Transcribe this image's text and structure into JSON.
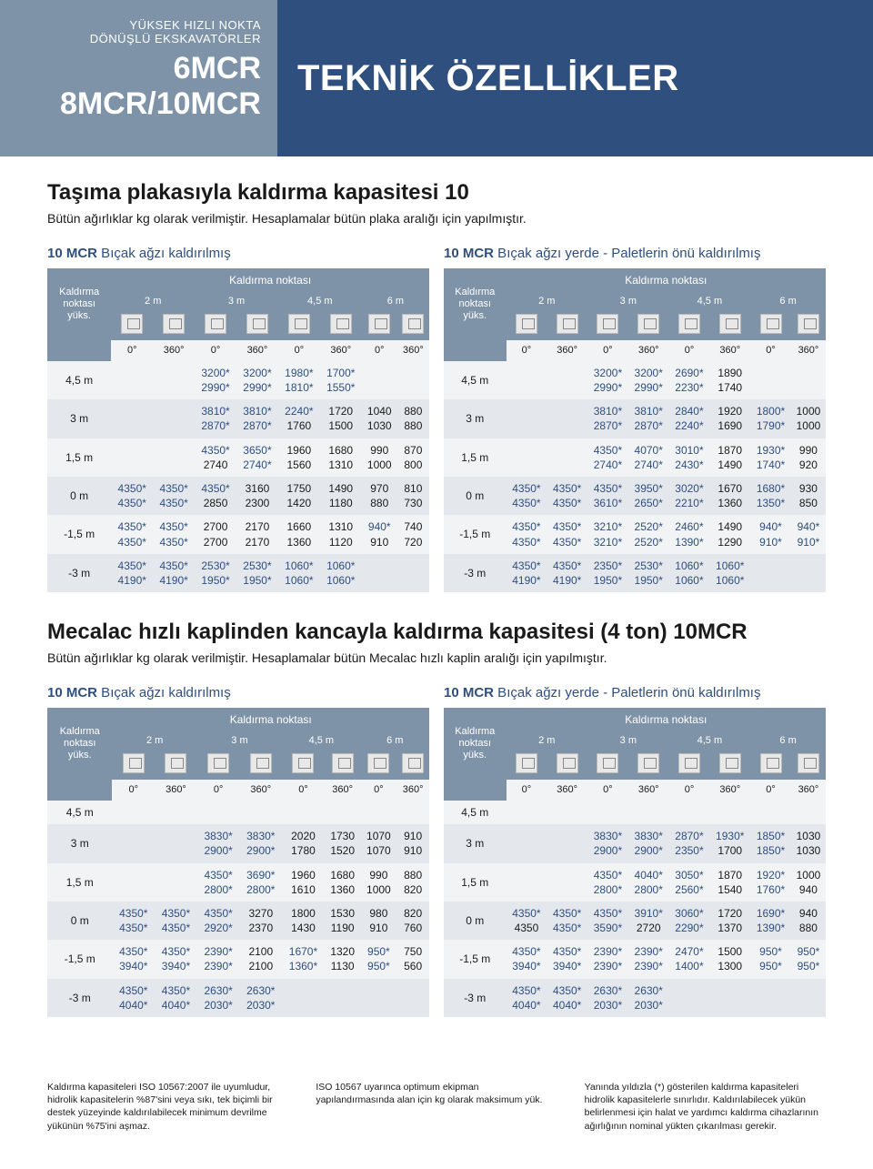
{
  "hdr": {
    "s1": "YÜKSEK HIZLI NOKTA",
    "s2": "DÖNÜŞLÜ EKSKAVATÖRLER",
    "m1": "6MCR",
    "m2": "8MCR/10MCR",
    "r": "TEKNİK ÖZELLİKLER"
  },
  "sec1": {
    "h": "Taşıma plakasıyla kaldırma kapasitesi 10",
    "sub": "Bütün ağırlıklar kg olarak verilmiştir. Hesaplamalar bütün plaka aralığı için yapılmıştır."
  },
  "sec2": {
    "h": "Mecalac hızlı kaplinden kancayla kaldırma kapasitesi (4 ton) 10MCR",
    "sub": "Bütün ağırlıklar kg olarak verilmiştir. Hesaplamalar bütün Mecalac hızlı kaplin aralığı için yapılmıştır."
  },
  "th": {
    "kn": "Kaldırma noktası",
    "lab": "Kaldırma noktası yüks.",
    "cols": [
      "2 m",
      "3 m",
      "4,5 m",
      "6 m"
    ],
    "degs": [
      "0°",
      "360°",
      "0°",
      "360°",
      "0°",
      "360°",
      "0°",
      "360°"
    ]
  },
  "t1": {
    "title": "10 MCR Bıçak ağzı kaldırılmış",
    "rows": [
      {
        "h": "4,5 m",
        "c": [
          "",
          "",
          "3200*|2990*",
          "3200*|2990*",
          "1980*|1810*",
          "1700*|1550*",
          "",
          ""
        ]
      },
      {
        "h": "3 m",
        "c": [
          "",
          "",
          "3810*|2870*",
          "3810*|2870*",
          "2240*|1760",
          "1720|1500",
          "1040|1030",
          "880|880"
        ]
      },
      {
        "h": "1,5 m",
        "c": [
          "",
          "",
          "4350*|2740",
          "3650*|2740*",
          "1960|1560",
          "1680|1310",
          "990|1000",
          "870|800"
        ]
      },
      {
        "h": "0 m",
        "c": [
          "4350*|4350*",
          "4350*|4350*",
          "4350*|2850",
          "3160|2300",
          "1750|1420",
          "1490|1180",
          "970|880",
          "810|730"
        ]
      },
      {
        "h": "-1,5 m",
        "c": [
          "4350*|4350*",
          "4350*|4350*",
          "2700|2700",
          "2170|2170",
          "1660|1360",
          "1310|1120",
          "940*|910",
          "740|720"
        ]
      },
      {
        "h": "-3 m",
        "c": [
          "4350*|4190*",
          "4350*|4190*",
          "2530*|1950*",
          "2530*|1950*",
          "1060*|1060*",
          "1060*|1060*",
          "",
          ""
        ]
      }
    ]
  },
  "t2": {
    "title": "10 MCR Bıçak ağzı yerde - Paletlerin önü kaldırılmış",
    "rows": [
      {
        "h": "4,5 m",
        "c": [
          "",
          "",
          "3200*|2990*",
          "3200*|2990*",
          "2690*|2230*",
          "1890|1740",
          "",
          ""
        ]
      },
      {
        "h": "3 m",
        "c": [
          "",
          "",
          "3810*|2870*",
          "3810*|2870*",
          "2840*|2240*",
          "1920|1690",
          "1800*|1790*",
          "1000|1000"
        ]
      },
      {
        "h": "1,5 m",
        "c": [
          "",
          "",
          "4350*|2740*",
          "4070*|2740*",
          "3010*|2430*",
          "1870|1490",
          "1930*|1740*",
          "990|920"
        ]
      },
      {
        "h": "0 m",
        "c": [
          "4350*|4350*",
          "4350*|4350*",
          "4350*|3610*",
          "3950*|2650*",
          "3020*|2210*",
          "1670|1360",
          "1680*|1350*",
          "930|850"
        ]
      },
      {
        "h": "-1,5 m",
        "c": [
          "4350*|4350*",
          "4350*|4350*",
          "3210*|3210*",
          "2520*|2520*",
          "2460*|1390*",
          "1490|1290",
          "940*|910*",
          "940*|910*"
        ]
      },
      {
        "h": "-3 m",
        "c": [
          "4350*|4190*",
          "4350*|4190*",
          "2350*|1950*",
          "2530*|1950*",
          "1060*|1060*",
          "1060*|1060*",
          "",
          ""
        ]
      }
    ]
  },
  "t3": {
    "title": "10 MCR Bıçak ağzı kaldırılmış",
    "rows": [
      {
        "h": "4,5 m",
        "c": [
          "",
          "",
          "",
          "",
          "",
          "",
          "",
          ""
        ]
      },
      {
        "h": "3 m",
        "c": [
          "",
          "",
          "3830*|2900*",
          "3830*|2900*",
          "2020|1780",
          "1730|1520",
          "1070|1070",
          "910|910"
        ]
      },
      {
        "h": "1,5 m",
        "c": [
          "",
          "",
          "4350*|2800*",
          "3690*|2800*",
          "1960|1610",
          "1680|1360",
          "990|1000",
          "880|820"
        ]
      },
      {
        "h": "0 m",
        "c": [
          "4350*|4350*",
          "4350*|4350*",
          "4350*|2920*",
          "3270|2370",
          "1800|1430",
          "1530|1190",
          "980|910",
          "820|760"
        ]
      },
      {
        "h": "-1,5 m",
        "c": [
          "4350*|3940*",
          "4350*|3940*",
          "2390*|2390*",
          "2100|2100",
          "1670*|1360*",
          "1320|1130",
          "950*|950*",
          "750|560"
        ]
      },
      {
        "h": "-3 m",
        "c": [
          "4350*|4040*",
          "4350*|4040*",
          "2630*|2030*",
          "2630*|2030*",
          "",
          "",
          "",
          ""
        ]
      }
    ]
  },
  "t4": {
    "title": "10 MCR Bıçak ağzı yerde - Paletlerin önü kaldırılmış",
    "rows": [
      {
        "h": "4,5 m",
        "c": [
          "",
          "",
          "",
          "",
          "",
          "",
          "",
          ""
        ]
      },
      {
        "h": "3 m",
        "c": [
          "",
          "",
          "3830*|2900*",
          "3830*|2900*",
          "2870*|2350*",
          "1930*|1700",
          "1850*|1850*",
          "1030|1030"
        ]
      },
      {
        "h": "1,5 m",
        "c": [
          "",
          "",
          "4350*|2800*",
          "4040*|2800*",
          "3050*|2560*",
          "1870|1540",
          "1920*|1760*",
          "1000|940"
        ]
      },
      {
        "h": "0 m",
        "c": [
          "4350*|4350",
          "4350*|4350*",
          "4350*|3590*",
          "3910*|2720",
          "3060*|2290*",
          "1720|1370",
          "1690*|1390*",
          "940|880"
        ]
      },
      {
        "h": "-1,5 m",
        "c": [
          "4350*|3940*",
          "4350*|3940*",
          "2390*|2390*",
          "2390*|2390*",
          "2470*|1400*",
          "1500|1300",
          "950*|950*",
          "950*|950*"
        ]
      },
      {
        "h": "-3 m",
        "c": [
          "4350*|4040*",
          "4350*|4040*",
          "2630*|2030*",
          "2630*|2030*",
          "",
          "",
          "",
          ""
        ]
      }
    ]
  },
  "foot": {
    "c1": "Kaldırma kapasiteleri ISO 10567:2007 ile uyumludur, hidrolik kapasitelerin %87'sini veya sıkı, tek biçimli bir destek yüzeyinde kaldırılabilecek minimum devrilme yükünün %75'ini aşmaz.",
    "c2": "ISO 10567 uyarınca optimum ekipman yapılandırmasında alan için kg olarak maksimum yük.",
    "c3": "Yanında yıldızla (*) gösterilen kaldırma kapasiteleri hidrolik kapasitelerle sınırlıdır.\nKaldırılabilecek yükün belirlenmesi için halat ve yardımcı kaldırma cihazlarının ağırlığının nominal yükten çıkarılması gerekir."
  }
}
